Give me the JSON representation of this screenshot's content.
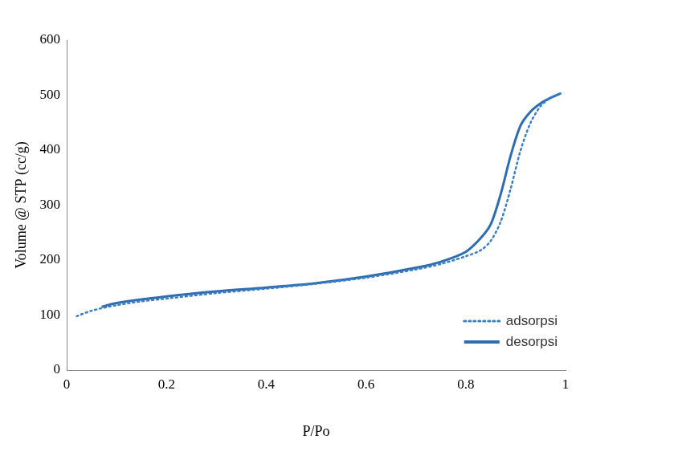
{
  "chart_data": {
    "type": "line",
    "x_label": "P/Po",
    "y_label": "Volume @ STP (cc/g)",
    "xlim": [
      0,
      1
    ],
    "xticks": [
      0,
      0.2,
      0.4,
      0.6,
      0.8,
      1
    ],
    "ylim": [
      0,
      600
    ],
    "yticks": [
      0,
      100,
      200,
      300,
      400,
      500,
      600
    ],
    "grid": false,
    "legend": "bottom-right",
    "series": [
      {
        "name": "adsorpsi",
        "color": "#3a7fc4",
        "line_style": "dotted",
        "x": [
          0.02,
          0.05,
          0.1,
          0.15,
          0.2,
          0.3,
          0.4,
          0.5,
          0.6,
          0.7,
          0.75,
          0.8,
          0.83,
          0.85,
          0.87,
          0.89,
          0.91,
          0.93,
          0.95,
          0.97,
          0.99
        ],
        "values": [
          98,
          108,
          118,
          125,
          130,
          140,
          148,
          157,
          168,
          183,
          193,
          207,
          218,
          235,
          270,
          330,
          400,
          450,
          480,
          495,
          503
        ]
      },
      {
        "name": "desorpsi",
        "color": "#2e6db0",
        "line_style": "solid",
        "x": [
          0.99,
          0.97,
          0.95,
          0.93,
          0.91,
          0.89,
          0.87,
          0.85,
          0.83,
          0.8,
          0.75,
          0.7,
          0.6,
          0.5,
          0.4,
          0.3,
          0.2,
          0.1,
          0.07
        ],
        "values": [
          503,
          495,
          485,
          470,
          445,
          390,
          320,
          265,
          240,
          215,
          197,
          186,
          170,
          158,
          150,
          143,
          134,
          122,
          115
        ]
      }
    ]
  }
}
